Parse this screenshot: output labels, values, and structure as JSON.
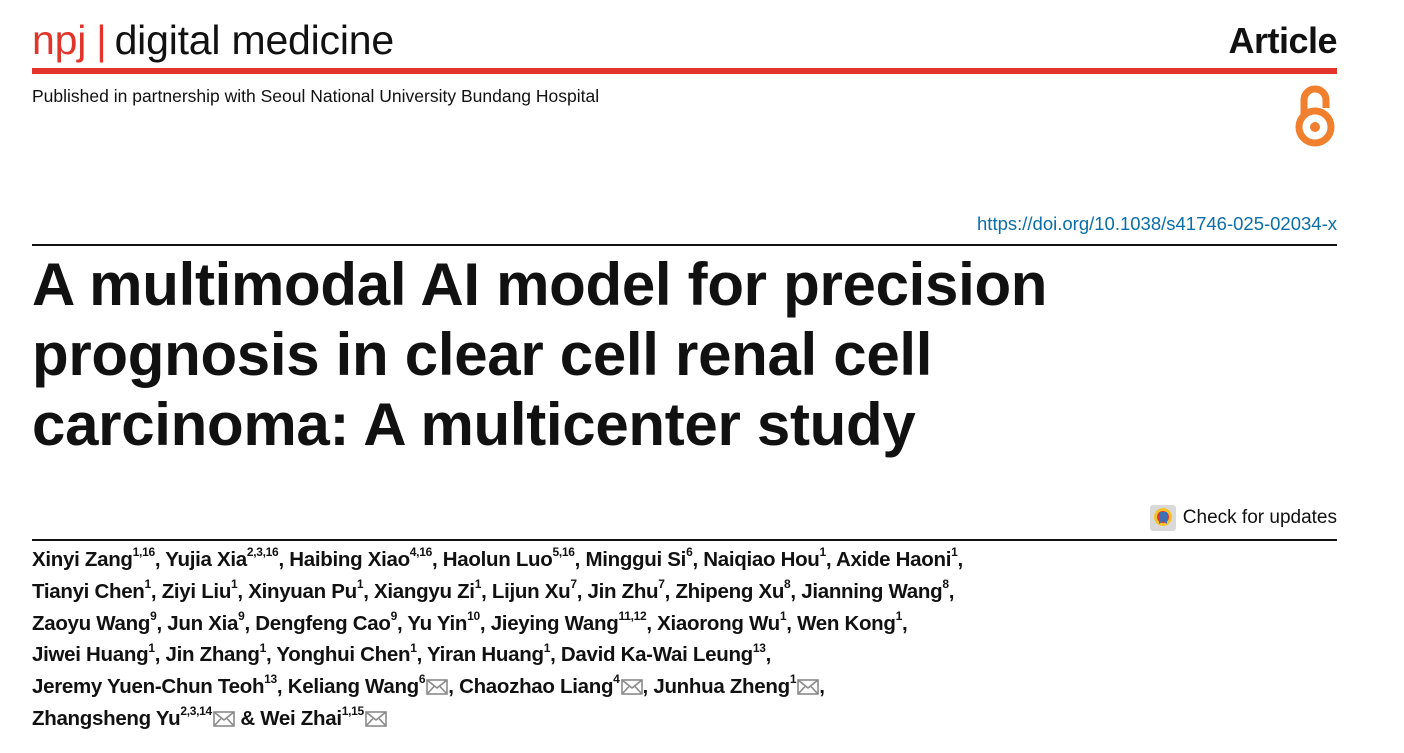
{
  "header": {
    "journal_prefix": "npj",
    "journal_separator": "|",
    "journal_rest": "digital medicine",
    "article_type": "Article",
    "partnership": "Published in partnership with Seoul National University Bundang Hospital",
    "brand_red": "#e2342b",
    "open_access_icon": "open-access-icon",
    "open_access_color": "#f07f2e"
  },
  "doi": "https://doi.org/10.1038/s41746-025-02034-x",
  "title": "A multimodal AI model for precision prognosis in clear cell renal cell carcinoma: A multicenter study",
  "check_updates_label": "Check for updates",
  "authors": {
    "a01": {
      "name": "Xinyi Zang",
      "aff": "1,16"
    },
    "a02": {
      "name": "Yujia Xia",
      "aff": "2,3,16"
    },
    "a03": {
      "name": "Haibing Xiao",
      "aff": "4,16"
    },
    "a04": {
      "name": "Haolun Luo",
      "aff": "5,16"
    },
    "a05": {
      "name": "Minggui Si",
      "aff": "6"
    },
    "a06": {
      "name": "Naiqiao Hou",
      "aff": "1"
    },
    "a07": {
      "name": "Axide Haoni",
      "aff": "1"
    },
    "a08": {
      "name": "Tianyi Chen",
      "aff": "1"
    },
    "a09": {
      "name": "Ziyi Liu",
      "aff": "1"
    },
    "a10": {
      "name": "Xinyuan Pu",
      "aff": "1"
    },
    "a11": {
      "name": "Xiangyu Zi",
      "aff": "1"
    },
    "a12": {
      "name": "Lijun Xu",
      "aff": "7"
    },
    "a13": {
      "name": "Jin Zhu",
      "aff": "7"
    },
    "a14": {
      "name": "Zhipeng Xu",
      "aff": "8"
    },
    "a15": {
      "name": "Jianning Wang",
      "aff": "8"
    },
    "a16": {
      "name": "Zaoyu Wang",
      "aff": "9"
    },
    "a17": {
      "name": "Jun Xia",
      "aff": "9"
    },
    "a18": {
      "name": "Dengfeng Cao",
      "aff": "9"
    },
    "a19": {
      "name": "Yu Yin",
      "aff": "10"
    },
    "a20": {
      "name": "Jieying Wang",
      "aff": "11,12"
    },
    "a21": {
      "name": "Xiaorong Wu",
      "aff": "1"
    },
    "a22": {
      "name": "Wen Kong",
      "aff": "1"
    },
    "a23": {
      "name": "Jiwei Huang",
      "aff": "1"
    },
    "a24": {
      "name": "Jin Zhang",
      "aff": "1"
    },
    "a25": {
      "name": "Yonghui Chen",
      "aff": "1"
    },
    "a26": {
      "name": "Yiran Huang",
      "aff": "1"
    },
    "a27": {
      "name": "David Ka-Wai Leung",
      "aff": "13"
    },
    "a28": {
      "name": "Jeremy Yuen-Chun Teoh",
      "aff": "13"
    },
    "a29": {
      "name": "Keliang Wang",
      "aff": "6"
    },
    "a30": {
      "name": "Chaozhao Liang",
      "aff": "4"
    },
    "a31": {
      "name": "Junhua Zheng",
      "aff": "1"
    },
    "a32": {
      "name": "Zhangsheng Yu",
      "aff": "2,3,14"
    },
    "a33": {
      "name": "Wei Zhai",
      "aff": "1,15"
    },
    "separator": ", ",
    "final_separator": " & ",
    "corresponding_icon": "envelope-icon"
  }
}
